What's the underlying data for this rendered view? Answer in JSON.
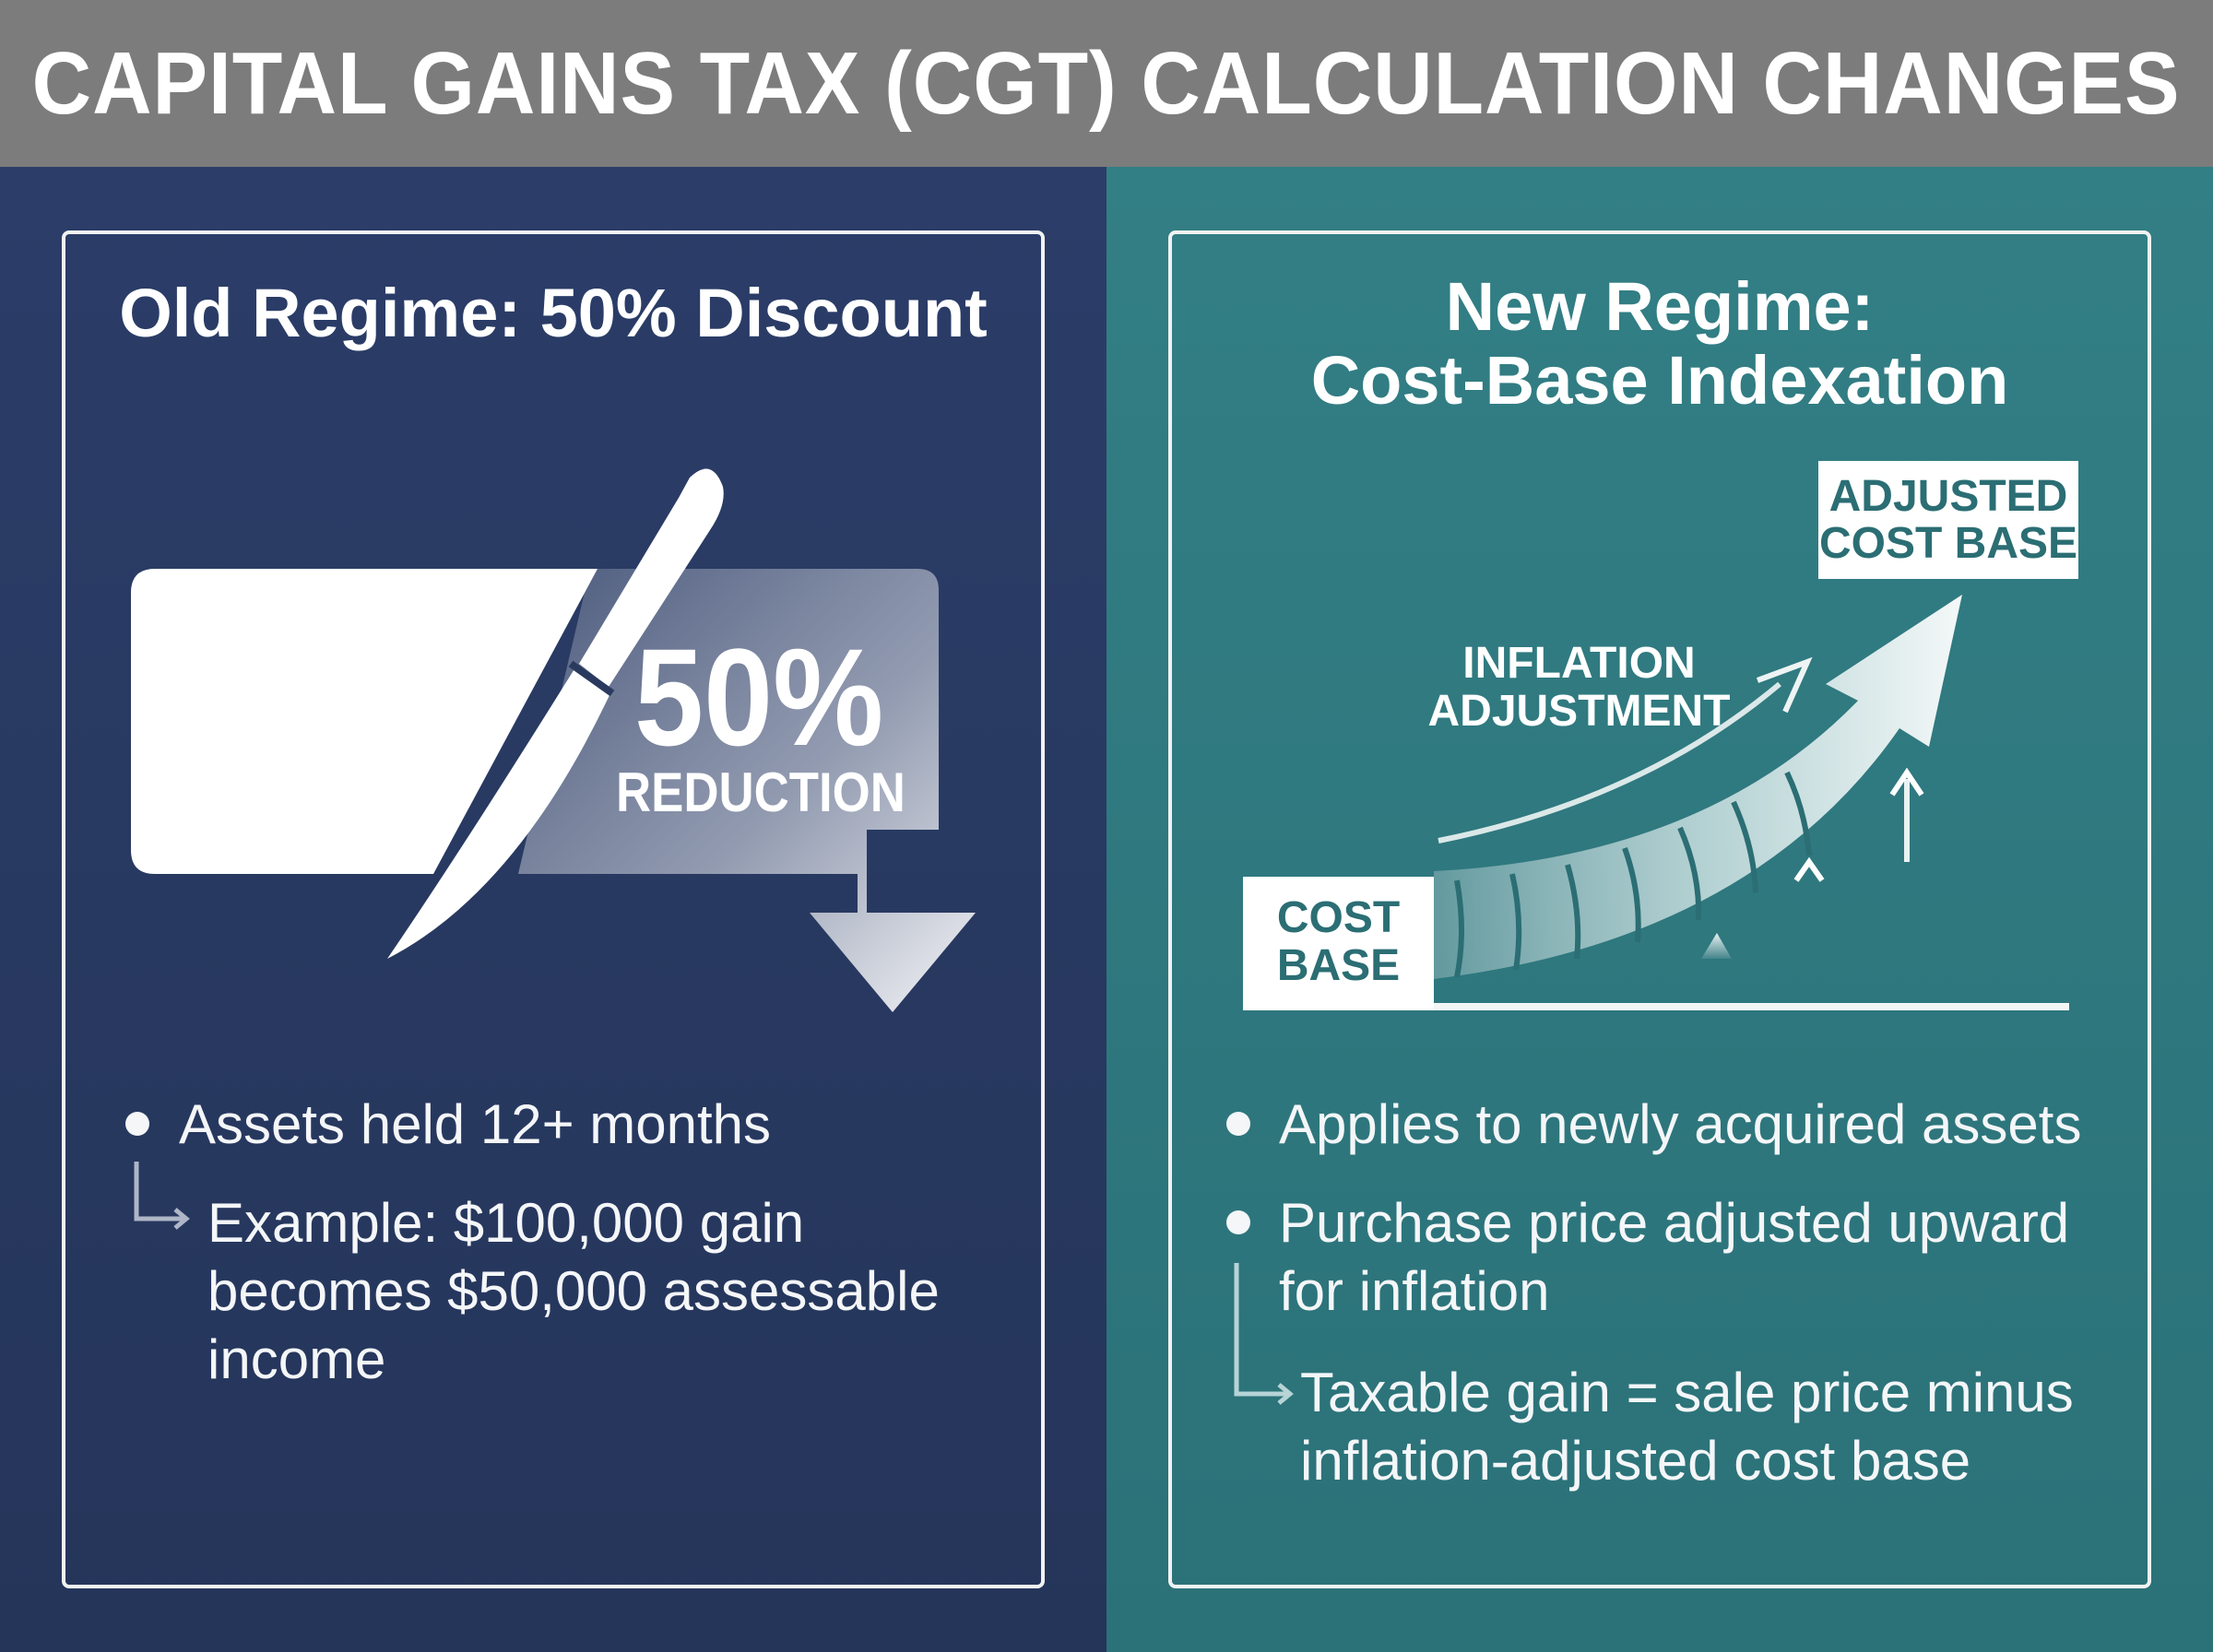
{
  "title": "CAPITAL GAINS TAX (CGT) CALCULATION CHANGES",
  "left_panel": {
    "heading": "Old Regime: 50% Discount",
    "graphic": {
      "big_value": "50%",
      "big_label": "REDUCTION",
      "icons": [
        "knife-icon",
        "down-arrow-icon"
      ]
    },
    "bullet": "Assets held 12+ months",
    "subnote_lines": [
      "Example: $100,000 gain",
      "becomes $50,000 assessable",
      "income"
    ]
  },
  "right_panel": {
    "heading_lines": [
      "New Regime:",
      "Cost-Base Indexation"
    ],
    "graphic": {
      "start_label_lines": [
        "COST",
        "BASE"
      ],
      "end_label_lines": [
        "ADJUSTED",
        "COST BASE"
      ],
      "arrow_label_lines": [
        "INFLATION",
        "ADJUSTMENT"
      ],
      "icons": [
        "curved-growth-arrow-icon",
        "up-arrow-icon"
      ]
    },
    "bullets": [
      {
        "lines": [
          "Applies to newly acquired assets"
        ]
      },
      {
        "lines": [
          "Purchase price adjusted upward",
          "for inflation"
        ]
      }
    ],
    "subnote_lines": [
      "Taxable gain = sale price minus",
      "inflation-adjusted cost base"
    ]
  },
  "colors": {
    "title_bar": "#7c7c7c",
    "left_panel_bg": "#2a3a5e",
    "right_panel_bg": "#2f787e",
    "text": "#ffffff",
    "accent_teal": "#2b6e74"
  }
}
